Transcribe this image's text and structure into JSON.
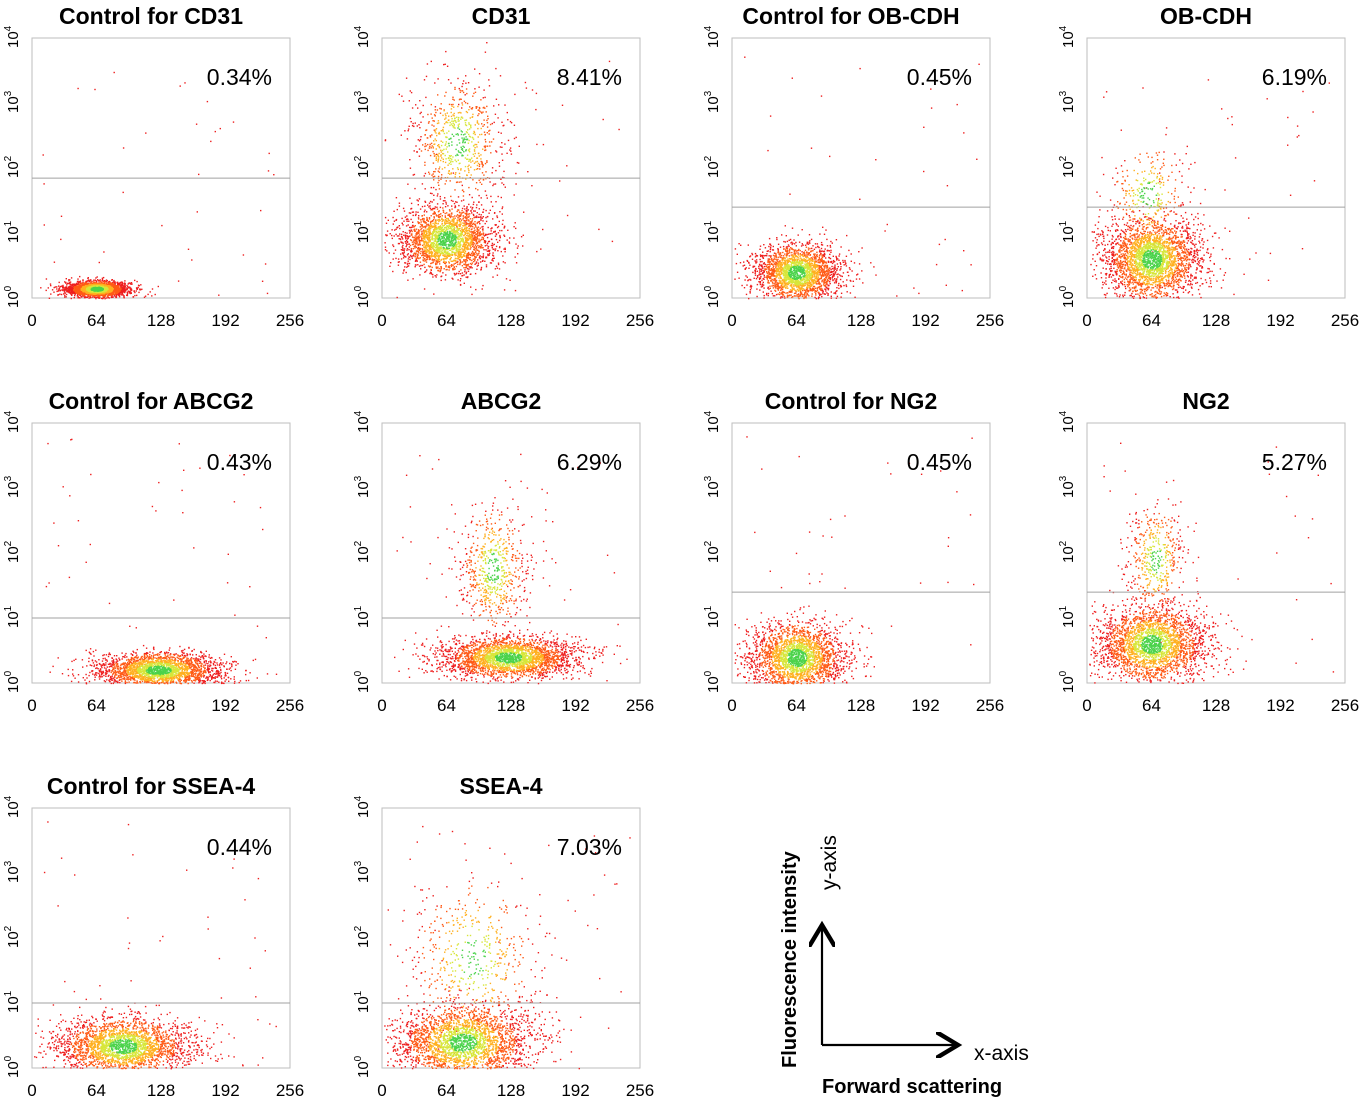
{
  "chart_data": [
    {
      "type": "scatter",
      "title": "Control  for CD31",
      "percent_label": "0.34%",
      "percent_value": 0.34,
      "xlim": [
        0,
        256
      ],
      "ylim_log10": [
        0,
        4
      ],
      "x_ticks": [
        "0",
        "64",
        "128",
        "192",
        "256"
      ],
      "y_ticks": [
        "10^0",
        "10^1",
        "10^2",
        "10^3",
        "10^4"
      ],
      "gate_y": 70,
      "clusters": [
        {
          "cx": 64,
          "cy": 1.4,
          "sx": 16,
          "sy": 1.2,
          "n": 2200
        }
      ]
    },
    {
      "type": "scatter",
      "title": "CD31",
      "percent_label": "8.41%",
      "percent_value": 8.41,
      "xlim": [
        0,
        256
      ],
      "ylim_log10": [
        0,
        4
      ],
      "x_ticks": [
        "0",
        "64",
        "128",
        "192",
        "256"
      ],
      "y_ticks": [
        "10^0",
        "10^1",
        "10^2",
        "10^3",
        "10^4"
      ],
      "gate_y": 70,
      "clusters": [
        {
          "cx": 64,
          "cy": 8,
          "sx": 25,
          "sy": 2.2,
          "n": 2400
        },
        {
          "cx": 75,
          "cy": 250,
          "sx": 25,
          "sy": 4,
          "n": 700
        }
      ]
    },
    {
      "type": "scatter",
      "title": "Control for OB-CDH",
      "percent_label": "0.45%",
      "percent_value": 0.45,
      "xlim": [
        0,
        256
      ],
      "ylim_log10": [
        0,
        4
      ],
      "x_ticks": [
        "0",
        "64",
        "128",
        "192",
        "256"
      ],
      "y_ticks": [
        "10^0",
        "10^1",
        "10^2",
        "10^3",
        "10^4"
      ],
      "gate_y": 25,
      "clusters": [
        {
          "cx": 64,
          "cy": 2.5,
          "sx": 22,
          "sy": 1.9,
          "n": 2200
        }
      ]
    },
    {
      "type": "scatter",
      "title": "OB-CDH",
      "percent_label": "6.19%",
      "percent_value": 6.19,
      "xlim": [
        0,
        256
      ],
      "ylim_log10": [
        0,
        4
      ],
      "x_ticks": [
        "0",
        "64",
        "128",
        "192",
        "256"
      ],
      "y_ticks": [
        "10^0",
        "10^1",
        "10^2",
        "10^3",
        "10^4"
      ],
      "gate_y": 25,
      "clusters": [
        {
          "cx": 64,
          "cy": 4,
          "sx": 25,
          "sy": 2.5,
          "n": 2600
        },
        {
          "cx": 60,
          "cy": 40,
          "sx": 22,
          "sy": 3,
          "n": 300
        }
      ]
    },
    {
      "type": "scatter",
      "title": "Control for ABCG2",
      "percent_label": "0.43%",
      "percent_value": 0.43,
      "xlim": [
        0,
        256
      ],
      "ylim_log10": [
        0,
        4
      ],
      "x_ticks": [
        "0",
        "64",
        "128",
        "192",
        "256"
      ],
      "y_ticks": [
        "10^0",
        "10^1",
        "10^2",
        "10^3",
        "10^4"
      ],
      "gate_y": 10,
      "clusters": [
        {
          "cx": 125,
          "cy": 1.6,
          "sx": 32,
          "sy": 1.5,
          "n": 2400
        }
      ]
    },
    {
      "type": "scatter",
      "title": "ABCG2",
      "percent_label": "6.29%",
      "percent_value": 6.29,
      "xlim": [
        0,
        256
      ],
      "ylim_log10": [
        0,
        4
      ],
      "x_ticks": [
        "0",
        "64",
        "128",
        "192",
        "256"
      ],
      "y_ticks": [
        "10^0",
        "10^1",
        "10^2",
        "10^3",
        "10^4"
      ],
      "gate_y": 10,
      "clusters": [
        {
          "cx": 125,
          "cy": 2.5,
          "sx": 35,
          "sy": 1.6,
          "n": 2600
        },
        {
          "cx": 110,
          "cy": 60,
          "sx": 18,
          "sy": 4,
          "n": 600
        }
      ]
    },
    {
      "type": "scatter",
      "title": "Control for NG2",
      "percent_label": "0.45%",
      "percent_value": 0.45,
      "xlim": [
        0,
        256
      ],
      "ylim_log10": [
        0,
        4
      ],
      "x_ticks": [
        "0",
        "64",
        "128",
        "192",
        "256"
      ],
      "y_ticks": [
        "10^0",
        "10^1",
        "10^2",
        "10^3",
        "10^4"
      ],
      "gate_y": 25,
      "clusters": [
        {
          "cx": 64,
          "cy": 2.5,
          "sx": 25,
          "sy": 2.2,
          "n": 2400
        }
      ]
    },
    {
      "type": "scatter",
      "title": "NG2",
      "percent_label": "5.27%",
      "percent_value": 5.27,
      "xlim": [
        0,
        256
      ],
      "ylim_log10": [
        0,
        4
      ],
      "x_ticks": [
        "0",
        "64",
        "128",
        "192",
        "256"
      ],
      "y_ticks": [
        "10^0",
        "10^1",
        "10^2",
        "10^3",
        "10^4"
      ],
      "gate_y": 25,
      "clusters": [
        {
          "cx": 64,
          "cy": 4,
          "sx": 28,
          "sy": 2.3,
          "n": 2500
        },
        {
          "cx": 68,
          "cy": 80,
          "sx": 15,
          "sy": 3.5,
          "n": 450
        }
      ]
    },
    {
      "type": "scatter",
      "title": "Control for SSEA-4",
      "percent_label": "0.44%",
      "percent_value": 0.44,
      "xlim": [
        0,
        256
      ],
      "ylim_log10": [
        0,
        4
      ],
      "x_ticks": [
        "0",
        "64",
        "128",
        "192",
        "256"
      ],
      "y_ticks": [
        "10^0",
        "10^1",
        "10^2",
        "10^3",
        "10^4"
      ],
      "gate_y": 10,
      "clusters": [
        {
          "cx": 90,
          "cy": 2.2,
          "sx": 35,
          "sy": 1.9,
          "n": 2500
        }
      ]
    },
    {
      "type": "scatter",
      "title": "SSEA-4",
      "percent_label": "7.03%",
      "percent_value": 7.03,
      "xlim": [
        0,
        256
      ],
      "ylim_log10": [
        0,
        4
      ],
      "x_ticks": [
        "0",
        "64",
        "128",
        "192",
        "256"
      ],
      "y_ticks": [
        "10^0",
        "10^1",
        "10^2",
        "10^3",
        "10^4"
      ],
      "gate_y": 10,
      "clusters": [
        {
          "cx": 80,
          "cy": 2.5,
          "sx": 35,
          "sy": 2.3,
          "n": 2600
        },
        {
          "cx": 90,
          "cy": 50,
          "sx": 35,
          "sy": 6,
          "n": 500
        }
      ]
    }
  ],
  "legend": {
    "y_axis_label": "Fluorescence intensity",
    "y_axis_short": "y-axis",
    "x_axis_label": "Forward scattering",
    "x_axis_short": "x-axis"
  }
}
